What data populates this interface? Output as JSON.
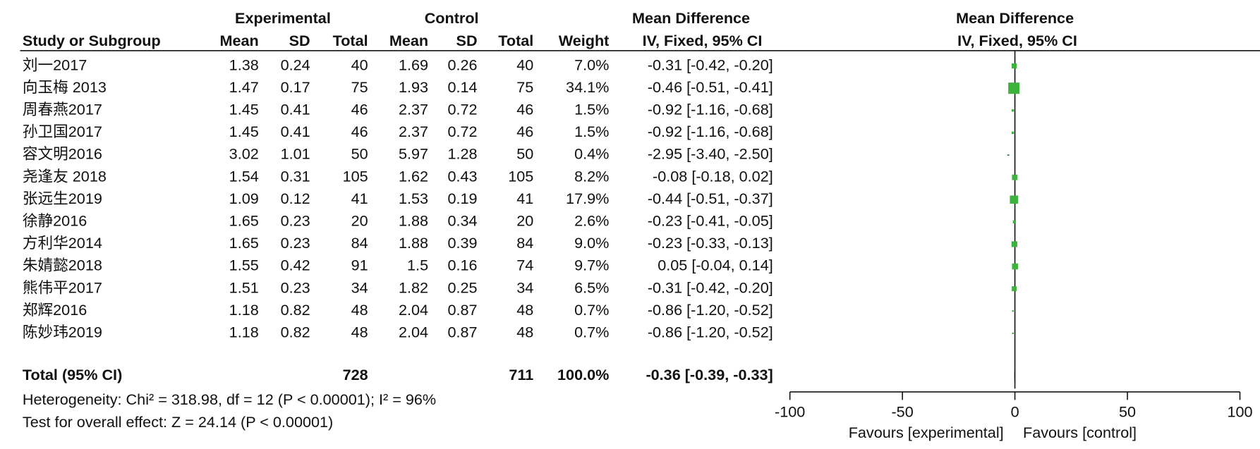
{
  "chart_data": {
    "type": "forest",
    "headers": {
      "experimental": "Experimental",
      "control": "Control",
      "effect": "Mean Difference",
      "plot_title": "Mean Difference",
      "study": "Study or Subgroup",
      "mean": "Mean",
      "sd": "SD",
      "total": "Total",
      "weight": "Weight",
      "method": "IV, Fixed, 95% CI",
      "plot_method": "IV, Fixed, 95% CI"
    },
    "categories": [
      "刘一2017",
      "向玉梅 2013",
      "周春燕2017",
      "孙卫国2017",
      "容文明2016",
      "尧逢友 2018",
      "张远生2019",
      "徐静2016",
      "方利华2014",
      "朱婧懿2018",
      "熊伟平2017",
      "郑辉2016",
      "陈妙玮2019"
    ],
    "exp_mean": [
      1.38,
      1.47,
      1.45,
      1.45,
      3.02,
      1.54,
      1.09,
      1.65,
      1.65,
      1.55,
      1.51,
      1.18,
      1.18
    ],
    "exp_sd": [
      0.24,
      0.17,
      0.41,
      0.41,
      1.01,
      0.31,
      0.12,
      0.23,
      0.23,
      0.42,
      0.23,
      0.82,
      0.82
    ],
    "exp_total": [
      40,
      75,
      46,
      46,
      50,
      105,
      41,
      20,
      84,
      91,
      34,
      48,
      48
    ],
    "ctrl_mean": [
      1.69,
      1.93,
      2.37,
      2.37,
      5.97,
      1.62,
      1.53,
      1.88,
      1.88,
      1.5,
      1.82,
      2.04,
      2.04
    ],
    "ctrl_sd": [
      0.26,
      0.14,
      0.72,
      0.72,
      1.28,
      0.43,
      0.19,
      0.34,
      0.39,
      0.16,
      0.25,
      0.87,
      0.87
    ],
    "ctrl_total": [
      40,
      75,
      46,
      46,
      50,
      105,
      41,
      20,
      84,
      74,
      34,
      48,
      48
    ],
    "weights": [
      7.0,
      34.1,
      1.5,
      1.5,
      0.4,
      8.2,
      17.9,
      2.6,
      9.0,
      9.7,
      6.5,
      0.7,
      0.7
    ],
    "weight_labels": [
      "7.0%",
      "34.1%",
      "1.5%",
      "1.5%",
      "0.4%",
      "8.2%",
      "17.9%",
      "2.6%",
      "9.0%",
      "9.7%",
      "6.5%",
      "0.7%",
      "0.7%"
    ],
    "values": [
      -0.31,
      -0.46,
      -0.92,
      -0.92,
      -2.95,
      -0.08,
      -0.44,
      -0.23,
      -0.23,
      0.05,
      -0.31,
      -0.86,
      -0.86
    ],
    "ci_lower": [
      -0.42,
      -0.51,
      -1.16,
      -1.16,
      -3.4,
      -0.18,
      -0.51,
      -0.41,
      -0.33,
      -0.04,
      -0.42,
      -1.2,
      -1.2
    ],
    "ci_upper": [
      -0.2,
      -0.41,
      -0.68,
      -0.68,
      -2.5,
      0.02,
      -0.37,
      -0.05,
      -0.13,
      0.14,
      -0.2,
      -0.52,
      -0.52
    ],
    "value_labels": [
      "-0.31 [-0.42, -0.20]",
      "-0.46 [-0.51, -0.41]",
      "-0.92 [-1.16, -0.68]",
      "-0.92 [-1.16, -0.68]",
      "-2.95 [-3.40, -2.50]",
      "-0.08 [-0.18, 0.02]",
      "-0.44 [-0.51, -0.37]",
      "-0.23 [-0.41, -0.05]",
      "-0.23 [-0.33, -0.13]",
      "0.05 [-0.04, 0.14]",
      "-0.31 [-0.42, -0.20]",
      "-0.86 [-1.20, -0.52]",
      "-0.86 [-1.20, -0.52]"
    ],
    "total": {
      "label": "Total (95% CI)",
      "exp_total": 728,
      "ctrl_total": 711,
      "weight_label": "100.0%",
      "value": -0.36,
      "ci_lower": -0.39,
      "ci_upper": -0.33,
      "value_label": "-0.36 [-0.39, -0.33]"
    },
    "heterogeneity": "Heterogeneity: Chi² = 318.98, df = 12 (P < 0.00001); I² = 96%",
    "overall_effect": "Test for overall effect: Z = 24.14 (P < 0.00001)",
    "xlim": [
      -100,
      100
    ],
    "xticks": [
      -100,
      -50,
      0,
      50,
      100
    ],
    "xlabel_left": "Favours [experimental]",
    "xlabel_right": "Favours [control]",
    "color": "#3cb43c"
  }
}
